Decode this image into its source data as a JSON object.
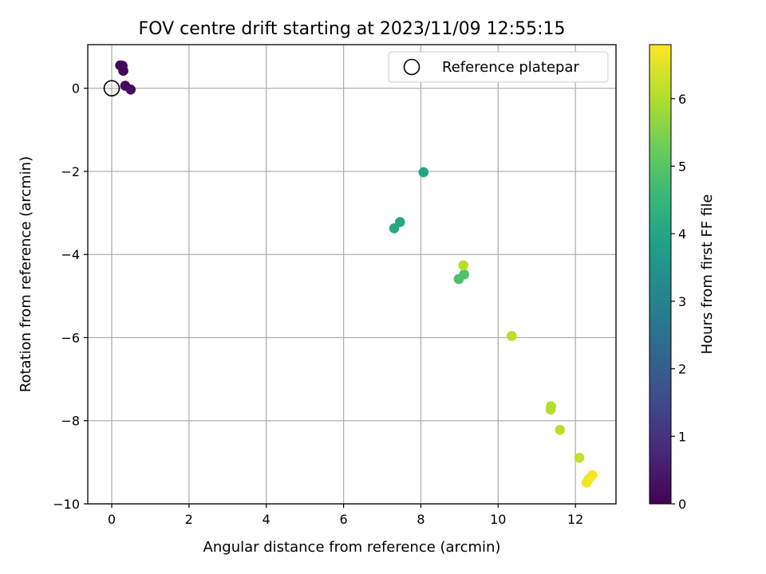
{
  "chart_data": {
    "type": "scatter",
    "title": "FOV centre drift starting at 2023/11/09 12:55:15",
    "xlabel": "Angular distance from reference (arcmin)",
    "ylabel": "Rotation from reference (arcmin)",
    "xlim": [
      -0.62,
      13.05
    ],
    "ylim": [
      -10.0,
      1.05
    ],
    "xticks": [
      0,
      2,
      4,
      6,
      8,
      10,
      12
    ],
    "yticks": [
      -10,
      -8,
      -6,
      -4,
      -2,
      0
    ],
    "grid": true,
    "legend": {
      "placement": "upper right",
      "entries": [
        "Reference platepar"
      ]
    },
    "reference_point": {
      "label": "Reference platepar",
      "x": 0.0,
      "y": 0.0
    },
    "colorbar": {
      "label": "Hours from first FF file",
      "colormap": "viridis",
      "range": [
        0,
        6.8
      ],
      "ticks": [
        0,
        1,
        2,
        3,
        4,
        5,
        6
      ]
    },
    "points": [
      {
        "x": 0.22,
        "y": 0.55,
        "hours": 0.05
      },
      {
        "x": 0.28,
        "y": 0.54,
        "hours": 0.1
      },
      {
        "x": 0.3,
        "y": 0.42,
        "hours": 0.15
      },
      {
        "x": 0.35,
        "y": 0.06,
        "hours": 0.2
      },
      {
        "x": 0.49,
        "y": -0.03,
        "hours": 0.25
      },
      {
        "x": 8.07,
        "y": -2.02,
        "hours": 4.0
      },
      {
        "x": 7.46,
        "y": -3.22,
        "hours": 4.05
      },
      {
        "x": 7.31,
        "y": -3.37,
        "hours": 4.1
      },
      {
        "x": 9.12,
        "y": -4.48,
        "hours": 4.9
      },
      {
        "x": 8.98,
        "y": -4.59,
        "hours": 4.85
      },
      {
        "x": 9.1,
        "y": -4.26,
        "hours": 6.1
      },
      {
        "x": 10.35,
        "y": -5.96,
        "hours": 6.1
      },
      {
        "x": 11.37,
        "y": -7.65,
        "hours": 6.05
      },
      {
        "x": 11.36,
        "y": -7.73,
        "hours": 6.05
      },
      {
        "x": 11.6,
        "y": -8.22,
        "hours": 6.1
      },
      {
        "x": 12.1,
        "y": -8.89,
        "hours": 6.2
      },
      {
        "x": 12.44,
        "y": -9.31,
        "hours": 6.75
      },
      {
        "x": 12.35,
        "y": -9.4,
        "hours": 6.7
      },
      {
        "x": 12.29,
        "y": -9.49,
        "hours": 6.7
      }
    ]
  }
}
